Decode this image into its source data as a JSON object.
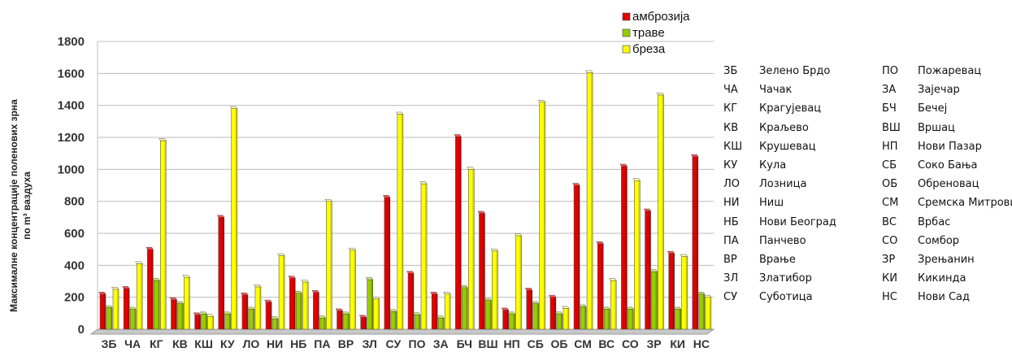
{
  "chart_data": {
    "type": "bar",
    "ylabel": [
      "Максималне концентрације поленових зрна",
      "по m³ ваздуха"
    ],
    "ylim": [
      0,
      1800
    ],
    "yticks": [
      0,
      200,
      400,
      600,
      800,
      1000,
      1200,
      1400,
      1600,
      1800
    ],
    "grid": true,
    "legend_position": "top-right",
    "categories": [
      "ЗБ",
      "ЧА",
      "КГ",
      "КВ",
      "КШ",
      "КУ",
      "ЛО",
      "НИ",
      "НБ",
      "ПА",
      "ВР",
      "ЗЛ",
      "СУ",
      "ПО",
      "ЗА",
      "БЧ",
      "ВШ",
      "НП",
      "СБ",
      "ОБ",
      "СМ",
      "ВС",
      "СО",
      "ЗР",
      "КИ",
      "НС"
    ],
    "series": [
      {
        "name": "амброзија",
        "color": "#e00000",
        "values": [
          220,
          255,
          500,
          185,
          90,
          700,
          215,
          170,
          320,
          230,
          115,
          75,
          825,
          350,
          220,
          1205,
          725,
          120,
          245,
          200,
          900,
          535,
          1020,
          740,
          475,
          1080
        ]
      },
      {
        "name": "траве",
        "color": "#99cc00",
        "values": [
          135,
          125,
          305,
          160,
          95,
          95,
          125,
          65,
          225,
          70,
          95,
          310,
          110,
          90,
          70,
          260,
          180,
          95,
          160,
          95,
          140,
          125,
          125,
          360,
          125,
          220
        ]
      },
      {
        "name": "бреза",
        "color": "#ffff00",
        "values": [
          250,
          410,
          1180,
          325,
          80,
          1380,
          265,
          460,
          295,
          800,
          495,
          190,
          1345,
          910,
          220,
          1000,
          490,
          585,
          1420,
          130,
          1605,
          305,
          930,
          1465,
          455,
          200
        ]
      }
    ]
  },
  "abbreviations": [
    {
      "code": "ЗБ",
      "name": "Зелено Брдо"
    },
    {
      "code": "ЧА",
      "name": "Чачак"
    },
    {
      "code": "КГ",
      "name": "Крагујевац"
    },
    {
      "code": "КВ",
      "name": "Краљево"
    },
    {
      "code": "КШ",
      "name": "Крушевац"
    },
    {
      "code": "КУ",
      "name": "Кула"
    },
    {
      "code": "ЛО",
      "name": "Лозница"
    },
    {
      "code": "НИ",
      "name": "Ниш"
    },
    {
      "code": "НБ",
      "name": "Нови Београд"
    },
    {
      "code": "ПА",
      "name": "Панчево"
    },
    {
      "code": "ВР",
      "name": "Врање"
    },
    {
      "code": "ЗЛ",
      "name": "Златибор"
    },
    {
      "code": "СУ",
      "name": "Суботица"
    },
    {
      "code": "ПО",
      "name": "Пожаревац"
    },
    {
      "code": "ЗА",
      "name": "Зајечар"
    },
    {
      "code": "БЧ",
      "name": "Бечеј"
    },
    {
      "code": "ВШ",
      "name": "Вршац"
    },
    {
      "code": "НП",
      "name": "Нови Пазар"
    },
    {
      "code": "СБ",
      "name": "Соко Бања"
    },
    {
      "code": "ОБ",
      "name": "Обреновац"
    },
    {
      "code": "СМ",
      "name": "Сремска Митровица"
    },
    {
      "code": "ВС",
      "name": "Врбас"
    },
    {
      "code": "СО",
      "name": "Сомбор"
    },
    {
      "code": "ЗР",
      "name": "Зрењанин"
    },
    {
      "code": "КИ",
      "name": "Кикинда"
    },
    {
      "code": "НС",
      "name": "Нови Сад"
    }
  ]
}
